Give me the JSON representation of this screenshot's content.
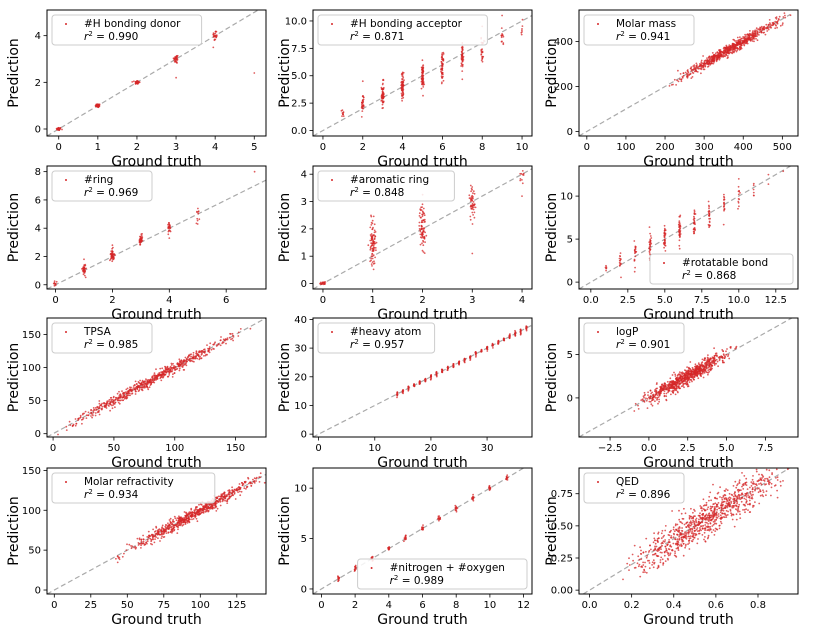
{
  "chart_data": [
    {
      "type": "scatter",
      "title": "",
      "xlabel": "Ground truth",
      "ylabel": "Prediction",
      "legend_label": "#H bonding donor",
      "r2": "= 0.990",
      "xlim": [
        -0.3,
        5.3
      ],
      "ylim": [
        -0.3,
        5.1
      ],
      "xticks": [
        0,
        1,
        2,
        3,
        4,
        5
      ],
      "yticks": [
        0,
        2,
        4
      ],
      "legend_position": "top-left",
      "diagonal": [
        [
          -0.3,
          -0.3
        ],
        [
          5.1,
          5.1
        ]
      ],
      "series": [
        {
          "name": "#H bonding donor",
          "clusters": [
            [
              0,
              0,
              0.03,
              0.03,
              40
            ],
            [
              1,
              1,
              0.03,
              0.04,
              40
            ],
            [
              2,
              2,
              0.03,
              0.04,
              40
            ],
            [
              3,
              3,
              0.03,
              0.1,
              35
            ],
            [
              4,
              4,
              0.03,
              0.12,
              25
            ]
          ],
          "outliers": [
            [
              3,
              2.2
            ],
            [
              5,
              2.4
            ],
            [
              0,
              0.05
            ]
          ]
        }
      ]
    },
    {
      "type": "scatter",
      "title": "",
      "xlabel": "Ground truth",
      "ylabel": "Prediction",
      "legend_label": "#H bonding acceptor",
      "r2": "= 0.871",
      "xlim": [
        -0.5,
        10.5
      ],
      "ylim": [
        -0.5,
        11
      ],
      "xticks": [
        0,
        2,
        4,
        6,
        8,
        10
      ],
      "yticks": [
        0,
        2.5,
        5,
        7.5,
        10
      ],
      "ytick_labels": [
        "0.0",
        "2.5",
        "5.0",
        "7.5",
        "10.0"
      ],
      "legend_position": "top-left",
      "diagonal": [
        [
          -0.5,
          -0.5
        ],
        [
          10.5,
          10.5
        ]
      ],
      "series": [
        {
          "name": "#H bonding acceptor",
          "clusters": [
            [
              1,
              1.6,
              0.03,
              0.2,
              10
            ],
            [
              2,
              2.4,
              0.03,
              0.5,
              30
            ],
            [
              3,
              3.2,
              0.03,
              0.6,
              60
            ],
            [
              4,
              4.1,
              0.03,
              0.6,
              70
            ],
            [
              5,
              4.9,
              0.03,
              0.6,
              70
            ],
            [
              6,
              5.8,
              0.03,
              0.6,
              55
            ],
            [
              7,
              6.6,
              0.03,
              0.7,
              45
            ],
            [
              8,
              7.4,
              0.03,
              0.6,
              25
            ],
            [
              9,
              8.3,
              0.03,
              0.5,
              12
            ],
            [
              10,
              9.3,
              0.03,
              0.4,
              6
            ]
          ],
          "outliers": [
            [
              9,
              10.5
            ],
            [
              10,
              9.0
            ],
            [
              2,
              4.5
            ],
            [
              8,
              9.5
            ]
          ]
        }
      ]
    },
    {
      "type": "scatter",
      "title": "",
      "xlabel": "Ground truth",
      "ylabel": "Prediction",
      "legend_label": "Molar mass",
      "r2": "= 0.941",
      "xlim": [
        -20,
        540
      ],
      "ylim": [
        -20,
        540
      ],
      "xticks": [
        0,
        100,
        200,
        300,
        400,
        500
      ],
      "yticks": [
        0,
        200,
        400
      ],
      "legend_position": "top-left",
      "diagonal": [
        [
          -20,
          -20
        ],
        [
          520,
          520
        ]
      ],
      "series": [
        {
          "name": "Molar mass",
          "band": [
            230,
            500,
            0,
            12,
            700
          ]
        }
      ]
    },
    {
      "type": "scatter",
      "title": "",
      "xlabel": "Ground truth",
      "ylabel": "Prediction",
      "legend_label": "#ring",
      "r2": "= 0.969",
      "xlim": [
        -0.3,
        7.4
      ],
      "ylim": [
        -0.3,
        8.4
      ],
      "xticks": [
        0,
        2,
        4,
        6
      ],
      "yticks": [
        0,
        2,
        4,
        6,
        8
      ],
      "legend_position": "top-left",
      "diagonal": [
        [
          -0.3,
          -0.3
        ],
        [
          8,
          8
        ]
      ],
      "series": [
        {
          "name": "#ring",
          "clusters": [
            [
              0,
              0.1,
              0.03,
              0.1,
              10
            ],
            [
              1,
              1.1,
              0.03,
              0.2,
              40
            ],
            [
              2,
              2.1,
              0.03,
              0.2,
              50
            ],
            [
              3,
              3.1,
              0.03,
              0.2,
              40
            ],
            [
              4,
              4.1,
              0.03,
              0.2,
              25
            ],
            [
              5,
              5.0,
              0.03,
              0.3,
              10
            ]
          ],
          "outliers": [
            [
              1,
              1.8
            ],
            [
              2,
              2.8
            ],
            [
              7,
              8
            ],
            [
              5,
              4.3
            ],
            [
              4,
              3.3
            ]
          ]
        }
      ]
    },
    {
      "type": "scatter",
      "title": "",
      "xlabel": "Ground truth",
      "ylabel": "Prediction",
      "legend_label": "#aromatic ring",
      "r2": "= 0.848",
      "xlim": [
        -0.2,
        4.2
      ],
      "ylim": [
        -0.2,
        4.3
      ],
      "xticks": [
        0,
        1,
        2,
        3,
        4
      ],
      "yticks": [
        0,
        1,
        2,
        3,
        4
      ],
      "legend_position": "top-left",
      "diagonal": [
        [
          -0.2,
          -0.2
        ],
        [
          4.2,
          4.2
        ]
      ],
      "series": [
        {
          "name": "#aromatic ring",
          "clusters": [
            [
              0,
              0,
              0.03,
              0.03,
              20
            ],
            [
              1,
              1.5,
              0.03,
              0.4,
              90
            ],
            [
              2,
              2.1,
              0.03,
              0.4,
              80
            ],
            [
              3,
              3.0,
              0.03,
              0.35,
              50
            ],
            [
              4,
              3.9,
              0.03,
              0.2,
              10
            ]
          ],
          "outliers": [
            [
              1,
              2.3
            ],
            [
              2,
              1.2
            ],
            [
              3,
              1.1
            ],
            [
              4,
              3.2
            ],
            [
              2,
              2.9
            ]
          ]
        }
      ]
    },
    {
      "type": "scatter",
      "title": "",
      "xlabel": "Ground truth",
      "ylabel": "Prediction",
      "legend_label": "#rotatable bond",
      "r2": "= 0.868",
      "xlim": [
        -0.8,
        14
      ],
      "ylim": [
        -0.8,
        13.5
      ],
      "xticks": [
        0,
        2.5,
        5,
        7.5,
        10,
        12.5
      ],
      "xtick_labels": [
        "0.0",
        "2.5",
        "5.0",
        "7.5",
        "10.0",
        "12.5"
      ],
      "yticks": [
        0,
        5,
        10
      ],
      "legend_position": "bottom-right",
      "diagonal": [
        [
          -0.8,
          -0.8
        ],
        [
          13.5,
          13.5
        ]
      ],
      "series": [
        {
          "name": "#rotatable bond",
          "clusters": [
            [
              1,
              1.5,
              0.03,
              0.3,
              6
            ],
            [
              2,
              2.4,
              0.03,
              0.7,
              15
            ],
            [
              3,
              3.3,
              0.03,
              0.8,
              20
            ],
            [
              4,
              4.2,
              0.03,
              0.8,
              30
            ],
            [
              5,
              5.2,
              0.03,
              0.8,
              35
            ],
            [
              6,
              6.2,
              0.03,
              0.8,
              35
            ],
            [
              7,
              7.0,
              0.03,
              0.8,
              30
            ],
            [
              8,
              7.9,
              0.03,
              0.8,
              25
            ],
            [
              9,
              8.8,
              0.03,
              0.8,
              18
            ],
            [
              10,
              9.9,
              0.03,
              0.8,
              12
            ],
            [
              11,
              10.8,
              0.03,
              0.6,
              6
            ]
          ],
          "outliers": [
            [
              12,
              12.5
            ],
            [
              13,
              12.9
            ],
            [
              10,
              12.0
            ],
            [
              12,
              11.4
            ]
          ]
        }
      ]
    },
    {
      "type": "scatter",
      "title": "",
      "xlabel": "Ground truth",
      "ylabel": "Prediction",
      "legend_label": "TPSA",
      "r2": "= 0.985",
      "xlim": [
        -5,
        175
      ],
      "ylim": [
        -5,
        175
      ],
      "xticks": [
        0,
        50,
        100,
        150
      ],
      "yticks": [
        0,
        50,
        100,
        150
      ],
      "legend_position": "top-left",
      "diagonal": [
        [
          -5,
          -5
        ],
        [
          175,
          175
        ]
      ],
      "series": [
        {
          "name": "TPSA",
          "band": [
            10,
            150,
            0,
            4,
            650
          ]
        }
      ]
    },
    {
      "type": "scatter",
      "title": "",
      "xlabel": "Ground truth",
      "ylabel": "Prediction",
      "legend_label": "#heavy atom",
      "r2": "= 0.957",
      "xlim": [
        -1,
        38
      ],
      "ylim": [
        -1,
        40.5
      ],
      "xticks": [
        0,
        10,
        20,
        30
      ],
      "yticks": [
        0,
        10,
        20,
        30,
        40
      ],
      "legend_position": "top-left",
      "diagonal": [
        [
          -1,
          -1
        ],
        [
          38,
          38
        ]
      ],
      "series": [
        {
          "name": "#heavy atom",
          "integer_band": [
            14,
            37,
            0.4,
            30
          ]
        }
      ]
    },
    {
      "type": "scatter",
      "title": "",
      "xlabel": "Ground truth",
      "ylabel": "Prediction",
      "legend_label": "logP",
      "r2": "= 0.901",
      "xlim": [
        -4.5,
        9.6
      ],
      "ylim": [
        -4.5,
        9.2
      ],
      "xticks": [
        -2.5,
        0,
        2.5,
        5,
        7.5
      ],
      "xtick_labels": [
        "−2.5",
        "0.0",
        "2.5",
        "5.0",
        "7.5"
      ],
      "yticks": [
        0,
        5
      ],
      "legend_position": "top-left",
      "diagonal": [
        [
          -4.5,
          -4.5
        ],
        [
          9.5,
          9.5
        ]
      ],
      "series": [
        {
          "name": "logP",
          "band": [
            -0.5,
            5.2,
            0,
            0.45,
            800
          ]
        }
      ]
    },
    {
      "type": "scatter",
      "title": "",
      "xlabel": "Ground truth",
      "ylabel": "Prediction",
      "legend_label": "Molar refractivity",
      "r2": "= 0.934",
      "xlim": [
        -5,
        145
      ],
      "ylim": [
        -5,
        153
      ],
      "xticks": [
        0,
        25,
        50,
        75,
        100,
        125
      ],
      "yticks": [
        0,
        50,
        100,
        150
      ],
      "legend_position": "top-left",
      "diagonal": [
        [
          -5,
          -5
        ],
        [
          145,
          145
        ]
      ],
      "series": [
        {
          "name": "Molar refractivity",
          "band": [
            50,
            142,
            0,
            4,
            700
          ]
        }
      ]
    },
    {
      "type": "scatter",
      "title": "",
      "xlabel": "Ground truth",
      "ylabel": "Prediction",
      "legend_label": "#nitrogen + #oxygen",
      "r2": "= 0.989",
      "xlim": [
        -0.5,
        12.5
      ],
      "ylim": [
        -0.5,
        12
      ],
      "xticks": [
        0,
        2,
        4,
        6,
        8,
        10,
        12
      ],
      "yticks": [
        0,
        5,
        10
      ],
      "legend_position": "bottom-right",
      "diagonal": [
        [
          -0.5,
          -0.5
        ],
        [
          12,
          12
        ]
      ],
      "series": [
        {
          "name": "#nitrogen + #oxygen",
          "integer_band": [
            1,
            11,
            0.12,
            30
          ]
        }
      ]
    },
    {
      "type": "scatter",
      "title": "",
      "xlabel": "Ground truth",
      "ylabel": "Prediction",
      "legend_label": "QED",
      "r2": "= 0.896",
      "xlim": [
        -0.05,
        0.99
      ],
      "ylim": [
        -0.03,
        0.95
      ],
      "xticks": [
        0,
        0.2,
        0.4,
        0.6,
        0.8
      ],
      "xtick_labels": [
        "0.0",
        "0.2",
        "0.4",
        "0.6",
        "0.8"
      ],
      "yticks": [
        0,
        0.25,
        0.5,
        0.75
      ],
      "ytick_labels": [
        "0.00",
        "0.25",
        "0.50",
        "0.75"
      ],
      "legend_position": "top-left",
      "diagonal": [
        [
          -0.03,
          -0.03
        ],
        [
          0.95,
          0.95
        ]
      ],
      "series": [
        {
          "name": "QED",
          "band": [
            0.2,
            0.93,
            0,
            0.07,
            900
          ]
        }
      ]
    }
  ],
  "colors": {
    "points": "#d62728",
    "diagonal": "#aaaaaa",
    "frame": "#000000",
    "legend_border": "#cccccc"
  }
}
